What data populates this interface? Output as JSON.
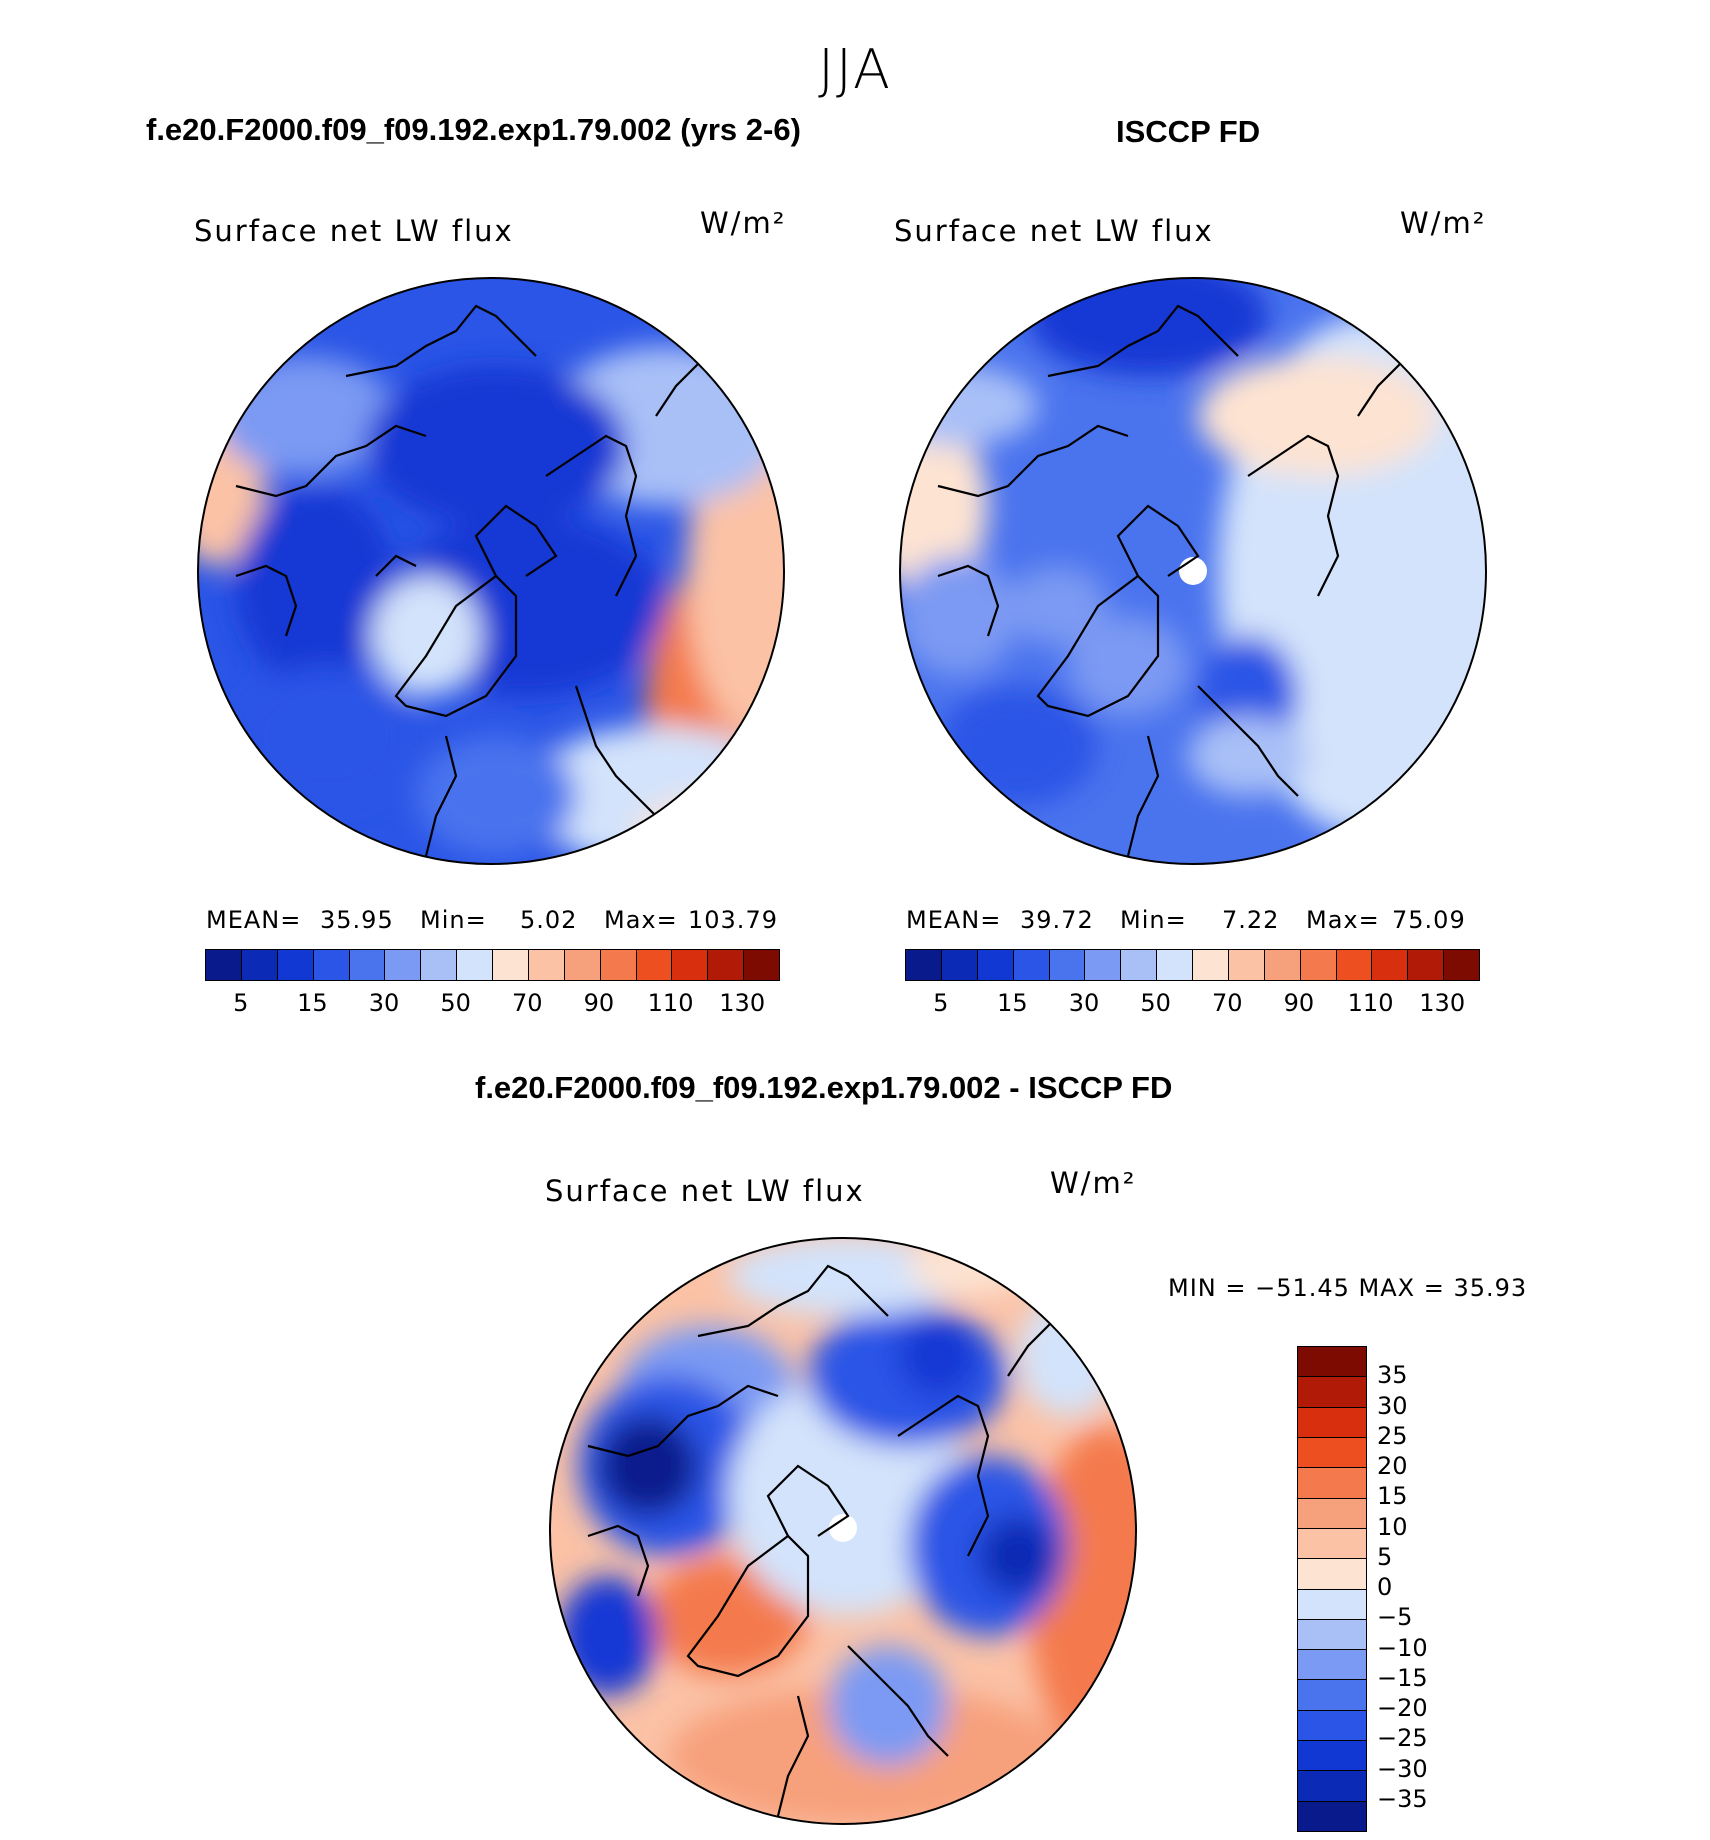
{
  "season": "JJA",
  "panels": {
    "model": {
      "header": "f.e20.F2000.f09_f09.192.exp1.79.002 (yrs 2-6)",
      "variable": "Surface net LW flux",
      "units": "W/m²",
      "stats": {
        "mean_label": "MEAN=",
        "mean": "35.95",
        "min_label": "Min=",
        "min": "5.02",
        "max_label": "Max=",
        "max": "103.79"
      }
    },
    "obs": {
      "header": "ISCCP FD",
      "variable": "Surface net LW flux",
      "units": "W/m²",
      "stats": {
        "mean_label": "MEAN=",
        "mean": "39.72",
        "min_label": "Min=",
        "min": "7.22",
        "max_label": "Max=",
        "max": "75.09"
      }
    },
    "diff": {
      "header": "f.e20.F2000.f09_f09.192.exp1.79.002 - ISCCP FD",
      "variable": "Surface net LW flux",
      "units": "W/m²",
      "stats_line": "MIN = −51.45 MAX =   35.93"
    }
  },
  "chart_data": [
    {
      "type": "heatmap",
      "projection": "north polar stereographic",
      "title": "Surface net LW flux",
      "units": "W/m²",
      "mean": 35.95,
      "min": 5.02,
      "max": 103.79,
      "colorbar_levels": [
        5,
        10,
        15,
        20,
        30,
        40,
        50,
        60,
        70,
        80,
        90,
        100,
        110,
        120,
        130
      ],
      "colorbar_tick_labels": [
        "5",
        "15",
        "30",
        "50",
        "70",
        "90",
        "110",
        "130"
      ],
      "colorbar_colors": [
        "#081a8c",
        "#0b2ab5",
        "#1238d4",
        "#2a55e6",
        "#4a73ee",
        "#7b9af3",
        "#a9c0f7",
        "#d3e3fb",
        "#fde3d2",
        "#fbc2a6",
        "#f7a07c",
        "#f47a4e",
        "#ee4f20",
        "#d8300f",
        "#b01a07",
        "#7d0b02"
      ]
    },
    {
      "type": "heatmap",
      "projection": "north polar stereographic",
      "title": "Surface net LW flux",
      "units": "W/m²",
      "mean": 39.72,
      "min": 7.22,
      "max": 75.09,
      "colorbar_levels": [
        5,
        10,
        15,
        20,
        30,
        40,
        50,
        60,
        70,
        80,
        90,
        100,
        110,
        120,
        130
      ],
      "colorbar_tick_labels": [
        "5",
        "15",
        "30",
        "50",
        "70",
        "90",
        "110",
        "130"
      ],
      "colorbar_colors": [
        "#081a8c",
        "#0b2ab5",
        "#1238d4",
        "#2a55e6",
        "#4a73ee",
        "#7b9af3",
        "#a9c0f7",
        "#d3e3fb",
        "#fde3d2",
        "#fbc2a6",
        "#f7a07c",
        "#f47a4e",
        "#ee4f20",
        "#d8300f",
        "#b01a07",
        "#7d0b02"
      ]
    },
    {
      "type": "heatmap",
      "projection": "north polar stereographic",
      "title": "Surface net LW flux",
      "units": "W/m²",
      "min": -51.45,
      "max": 35.93,
      "colorbar_tick_labels": [
        "35",
        "30",
        "25",
        "20",
        "15",
        "10",
        "5",
        "0",
        "−5",
        "−10",
        "−15",
        "−20",
        "−25",
        "−30",
        "−35"
      ],
      "colorbar_colors": [
        "#7d0b02",
        "#b01a07",
        "#d8300f",
        "#ee4f20",
        "#f47a4e",
        "#f7a07c",
        "#fbc2a6",
        "#fde3d2",
        "#d3e3fb",
        "#a9c0f7",
        "#7b9af3",
        "#4a73ee",
        "#2a55e6",
        "#1238d4",
        "#0b2ab5",
        "#081a8c"
      ]
    }
  ]
}
